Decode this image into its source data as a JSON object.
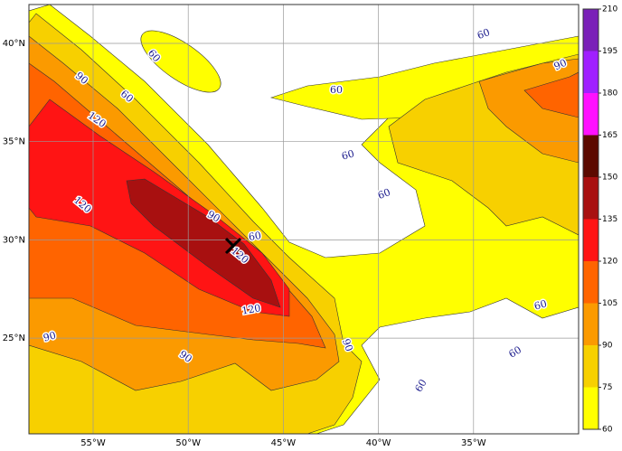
{
  "map": {
    "lon_labels": [
      "55°W",
      "50°W",
      "45°W",
      "40°W",
      "35°W"
    ],
    "lat_labels": [
      "40°N",
      "35°N",
      "30°N",
      "25°N"
    ],
    "colorbar": {
      "ticks": [
        60,
        75,
        90,
        105,
        120,
        135,
        150,
        165,
        180,
        195,
        210
      ],
      "colors": [
        "#ffff00",
        "#f7d000",
        "#fb9a00",
        "#ff6400",
        "#ff1414",
        "#a81010",
        "#5c0a00",
        "#ff10ff",
        "#a020ff",
        "#7a20b8"
      ]
    },
    "contour_labels": [
      60,
      60,
      60,
      60,
      60,
      60,
      60,
      60,
      60,
      60,
      90,
      90,
      90,
      90,
      90,
      90,
      120,
      120,
      120,
      120
    ]
  }
}
